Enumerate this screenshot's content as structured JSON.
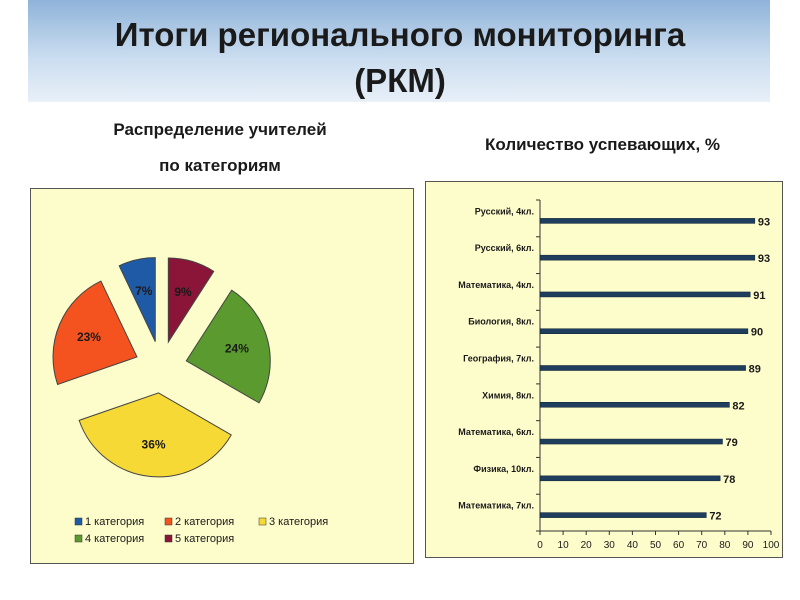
{
  "slide": {
    "title_line1": "Итоги регионального мониторинга",
    "title_line2": "(РКМ)"
  },
  "pie_title": {
    "line1": "Распределение учителей",
    "line2": "по категориям"
  },
  "bar_title": "Количество успевающих, %",
  "colors": {
    "banner": "#a9c6e6",
    "panel_bg": "#fdfccb",
    "bar": "#1f3d5c"
  },
  "chart_data": [
    {
      "type": "pie",
      "title": "Распределение учителей по категориям",
      "legend_position": "bottom",
      "slices": [
        {
          "label": "1 категория",
          "value": 7,
          "text": "7%",
          "color": "#1f5aa6"
        },
        {
          "label": "5 категория",
          "value": 9,
          "text": "9%",
          "color": "#8a1538"
        },
        {
          "label": "4 категория",
          "value": 24,
          "text": "24%",
          "color": "#5a9a2f"
        },
        {
          "label": "3 категория",
          "value": 36,
          "text": "36%",
          "color": "#f7d935"
        },
        {
          "label": "2 категория",
          "value": 23,
          "text": "23%",
          "color": "#f4531f"
        }
      ],
      "legend": [
        {
          "label": "1 категория",
          "color": "#1f5aa6"
        },
        {
          "label": "2 категория",
          "color": "#f4531f"
        },
        {
          "label": "3 категория",
          "color": "#f7d935"
        },
        {
          "label": "4 категория",
          "color": "#5a9a2f"
        },
        {
          "label": "5 категория",
          "color": "#8a1538"
        }
      ]
    },
    {
      "type": "bar",
      "orientation": "horizontal",
      "title": "Количество успевающих, %",
      "categories": [
        "Русский, 4кл.",
        "Русский, 6кл.",
        "Математика, 4кл.",
        "Биология, 8кл.",
        "География, 7кл.",
        "Химия, 8кл.",
        "Математика, 6кл.",
        "Физика, 10кл.",
        "Математика, 7кл."
      ],
      "values": [
        93,
        93,
        91,
        90,
        89,
        82,
        79,
        78,
        72
      ],
      "xlim": [
        0,
        100
      ],
      "xticks": [
        0,
        10,
        20,
        30,
        40,
        50,
        60,
        70,
        80,
        90,
        100
      ],
      "grid": false
    }
  ]
}
